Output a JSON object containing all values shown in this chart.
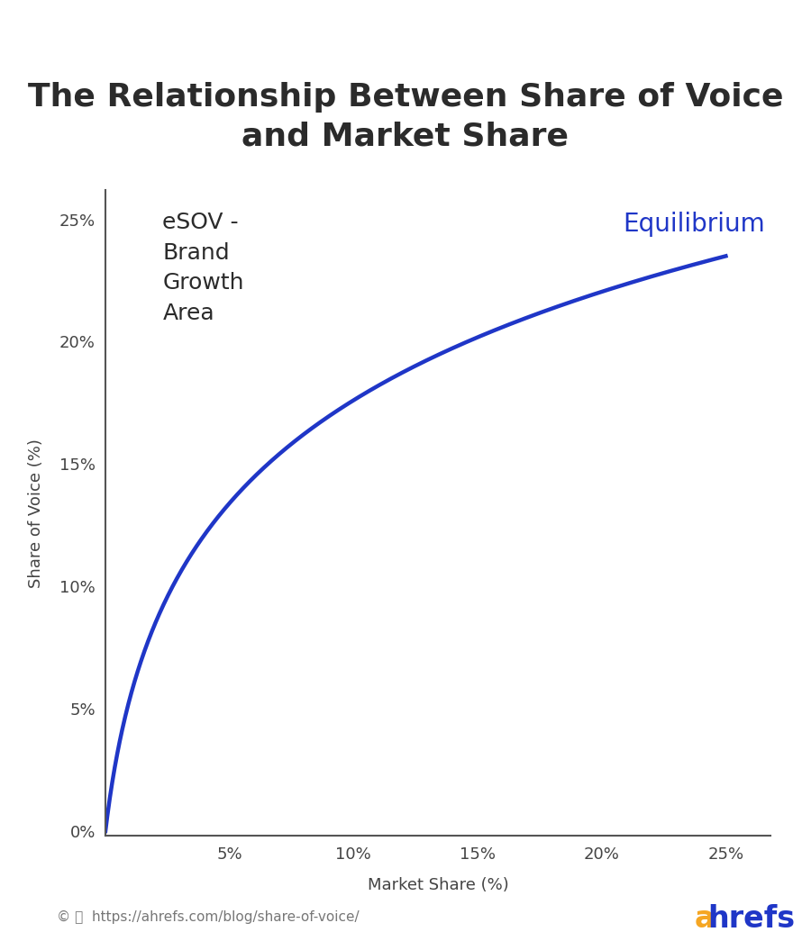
{
  "title": "The Relationship Between Share of Voice\nand Market Share",
  "xlabel": "Market Share (%)",
  "ylabel": "Share of Voice (%)",
  "annotation_text": "eSOV -\nBrand\nGrowth\nArea",
  "equilibrium_text": "Equilibrium",
  "url_text": "https://ahrefs.com/blog/share-of-voice/",
  "line_color": "#1f36c7",
  "title_color": "#2b2b2b",
  "annotation_color": "#2b2b2b",
  "equilibrium_color": "#1f36c7",
  "ahrefs_a_color": "#f5a623",
  "ahrefs_rest_color": "#1f36c7",
  "background_color": "#ffffff",
  "x_ticks": [
    0,
    0.05,
    0.1,
    0.15,
    0.2,
    0.25
  ],
  "x_tick_labels": [
    "",
    "5%",
    "10%",
    "15%",
    "20%",
    "25%"
  ],
  "y_ticks": [
    0,
    0.05,
    0.1,
    0.15,
    0.2,
    0.25
  ],
  "y_tick_labels": [
    "0%",
    "5%",
    "10%",
    "15%",
    "20%",
    "25%"
  ],
  "xlim": [
    0,
    0.268
  ],
  "ylim": [
    -0.002,
    0.262
  ],
  "log_scale": 0.055,
  "log_shift": 0.008,
  "curve_end_x": 0.25,
  "curve_end_y": 0.235,
  "title_fontsize": 26,
  "axis_label_fontsize": 13,
  "tick_fontsize": 13,
  "annotation_fontsize": 18,
  "equilibrium_fontsize": 20,
  "url_fontsize": 11,
  "ahrefs_fontsize": 24,
  "line_width": 3.2
}
